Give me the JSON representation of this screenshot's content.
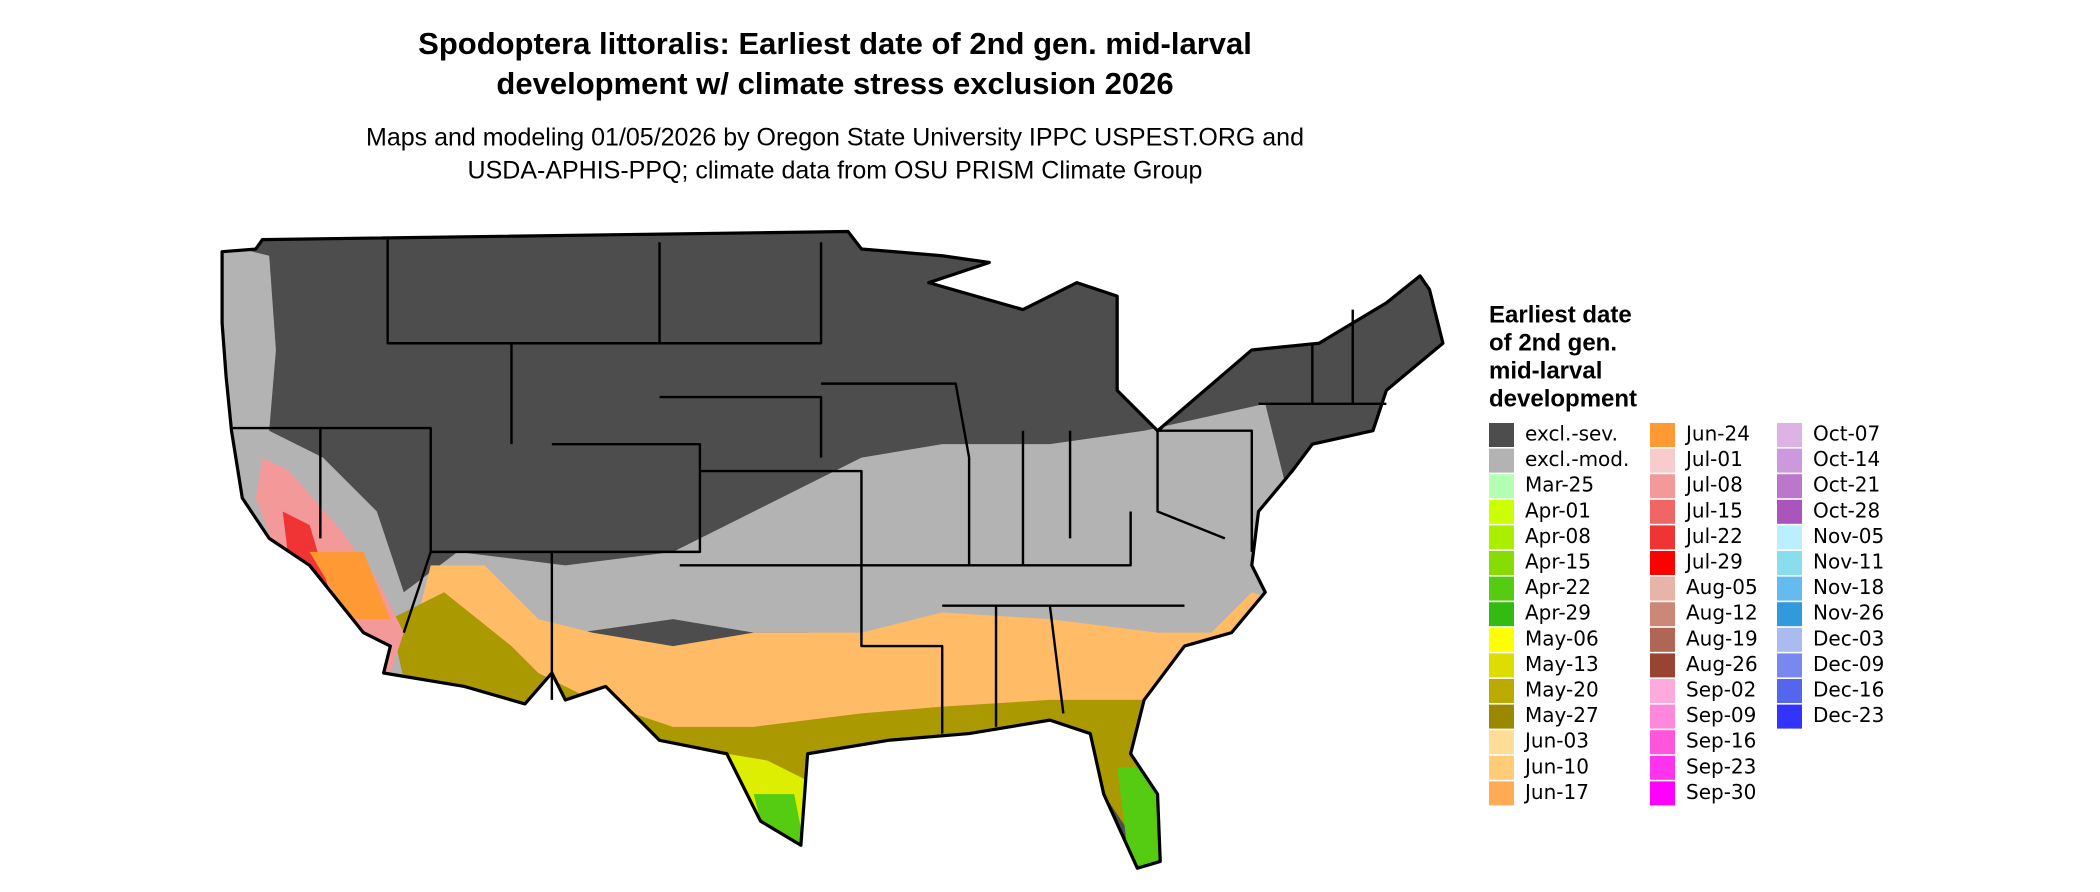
{
  "header": {
    "title_lines": [
      "Spodoptera littoralis: Earliest date of 2nd gen. mid-larval",
      "development w/ climate stress exclusion 2026"
    ],
    "subtitle_lines": [
      "Maps and modeling 01/05/2026 by Oregon State University IPPC USPEST.ORG and",
      "USDA-APHIS-PPQ; climate data from OSU PRISM Climate Group"
    ]
  },
  "legend": {
    "title_lines": [
      "Earliest date",
      "of 2nd gen.",
      "mid-larval",
      "development"
    ],
    "items": [
      {
        "label": "excl.-sev.",
        "color": "#4d4d4d"
      },
      {
        "label": "excl.-mod.",
        "color": "#b3b3b3"
      },
      {
        "label": "Mar-25",
        "color": "#b3ffb3"
      },
      {
        "label": "Apr-01",
        "color": "#ccff00"
      },
      {
        "label": "Apr-08",
        "color": "#aaee00"
      },
      {
        "label": "Apr-15",
        "color": "#88dd00"
      },
      {
        "label": "Apr-22",
        "color": "#55cc11"
      },
      {
        "label": "Apr-29",
        "color": "#33bb11"
      },
      {
        "label": "May-06",
        "color": "#ffff00"
      },
      {
        "label": "May-13",
        "color": "#dddd00"
      },
      {
        "label": "May-20",
        "color": "#bbaa00"
      },
      {
        "label": "May-27",
        "color": "#998800"
      },
      {
        "label": "Jun-03",
        "color": "#ffdd99"
      },
      {
        "label": "Jun-10",
        "color": "#ffcc77"
      },
      {
        "label": "Jun-17",
        "color": "#ffaa55"
      },
      {
        "label": "Jun-24",
        "color": "#ff9933"
      },
      {
        "label": "Jul-01",
        "color": "#f8cccc"
      },
      {
        "label": "Jul-08",
        "color": "#f49999"
      },
      {
        "label": "Jul-15",
        "color": "#f06666"
      },
      {
        "label": "Jul-22",
        "color": "#f03333"
      },
      {
        "label": "Jul-29",
        "color": "#ff0000"
      },
      {
        "label": "Aug-05",
        "color": "#e8b4a8"
      },
      {
        "label": "Aug-12",
        "color": "#cc8877"
      },
      {
        "label": "Aug-19",
        "color": "#b06655"
      },
      {
        "label": "Aug-26",
        "color": "#994433"
      },
      {
        "label": "Sep-02",
        "color": "#ffaadd"
      },
      {
        "label": "Sep-09",
        "color": "#ff88dd"
      },
      {
        "label": "Sep-16",
        "color": "#ff55dd"
      },
      {
        "label": "Sep-23",
        "color": "#ff33ee"
      },
      {
        "label": "Sep-30",
        "color": "#ff00ff"
      },
      {
        "label": "Oct-07",
        "color": "#ddb3e6"
      },
      {
        "label": "Oct-14",
        "color": "#cc99dd"
      },
      {
        "label": "Oct-21",
        "color": "#bb77cc"
      },
      {
        "label": "Oct-28",
        "color": "#aa55bb"
      },
      {
        "label": "Nov-05",
        "color": "#bbeeff"
      },
      {
        "label": "Nov-11",
        "color": "#88ddee"
      },
      {
        "label": "Nov-18",
        "color": "#66bbee"
      },
      {
        "label": "Nov-26",
        "color": "#3399dd"
      },
      {
        "label": "Dec-03",
        "color": "#aabbee"
      },
      {
        "label": "Dec-09",
        "color": "#7788ee"
      },
      {
        "label": "Dec-16",
        "color": "#5566ee"
      },
      {
        "label": "Dec-23",
        "color": "#3333ff"
      }
    ]
  }
}
